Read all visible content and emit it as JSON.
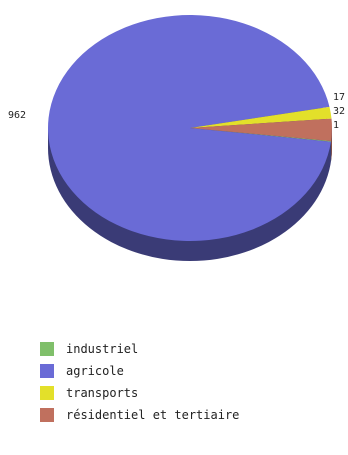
{
  "chart_data": {
    "type": "pie",
    "style": "3d",
    "title": "",
    "legend_placement": "bottom-left",
    "slices": [
      {
        "name": "industriel",
        "value": 1,
        "label": "1",
        "color": "#7fbf6a"
      },
      {
        "name": "agricole",
        "value": 962,
        "label": "962",
        "color": "#6a6bd6"
      },
      {
        "name": "transports",
        "value": 17,
        "label": "17",
        "color": "#e3e02a"
      },
      {
        "name": "résidentiel et tertiaire",
        "value": 32,
        "label": "32",
        "color": "#c0705e"
      }
    ]
  }
}
